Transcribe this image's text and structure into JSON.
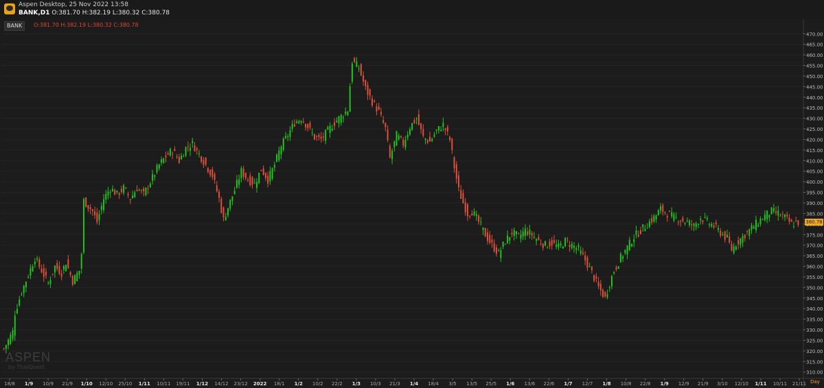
{
  "window": {
    "title": "Aspen Desktop, 25 Nov 2022 13:58",
    "symbol_line": "BANK,D1",
    "ohlc_line": "O:381.70 H:382.19 L:380.32 C:380.78"
  },
  "legend": {
    "symbol": "BANK",
    "ohlc": "O:381.70 H:382.19 L:380.32 C:380.78"
  },
  "watermark": {
    "brand": "ASPEN",
    "sub": "by ThaiQuest"
  },
  "colors": {
    "up": "#22c41c",
    "down": "#e0503a",
    "background": "#1c1c1c",
    "axis": "#3a3a3a",
    "accent": "#f0a81f"
  },
  "chart_data": {
    "type": "candlestick",
    "period_label": "Day",
    "last_price_label": "380.78",
    "ylim": [
      307,
      473
    ],
    "y_ticks": [
      "470.00",
      "465.00",
      "460.00",
      "455.00",
      "450.00",
      "445.00",
      "440.00",
      "435.00",
      "430.00",
      "425.00",
      "420.00",
      "415.00",
      "410.00",
      "405.00",
      "400.00",
      "395.00",
      "390.00",
      "385.00",
      "380.00",
      "375.00",
      "370.00",
      "365.00",
      "360.00",
      "355.00",
      "350.00",
      "345.00",
      "340.00",
      "335.00",
      "330.00",
      "325.00",
      "320.00",
      "315.00",
      "310.00"
    ],
    "x_ticks": [
      "18/8",
      "1/9",
      "10/9",
      "21/9",
      "1/10",
      "12/10",
      "25/10",
      "1/11",
      "10/11",
      "19/11",
      "1/12",
      "14/12",
      "23/12",
      "2022",
      "18/1",
      "1/2",
      "10/2",
      "22/2",
      "1/3",
      "10/3",
      "21/3",
      "1/4",
      "18/4",
      "3/5",
      "13/5",
      "25/5",
      "1/6",
      "13/6",
      "22/6",
      "1/7",
      "12/7",
      "1/8",
      "10/8",
      "22/8",
      "1/9",
      "12/9",
      "21/9",
      "3/10",
      "12/10",
      "1/11",
      "10/11",
      "21/11"
    ],
    "anchors": [
      [
        0,
        321
      ],
      [
        4,
        329
      ],
      [
        5,
        338
      ],
      [
        8,
        348
      ],
      [
        11,
        356
      ],
      [
        14,
        364
      ],
      [
        17,
        358
      ],
      [
        20,
        352
      ],
      [
        23,
        360
      ],
      [
        26,
        357
      ],
      [
        28,
        362
      ],
      [
        31,
        353
      ],
      [
        34,
        358
      ],
      [
        35,
        366
      ],
      [
        36,
        391
      ],
      [
        40,
        386
      ],
      [
        42,
        381
      ],
      [
        45,
        392
      ],
      [
        48,
        397
      ],
      [
        51,
        394
      ],
      [
        54,
        397
      ],
      [
        57,
        392
      ],
      [
        60,
        397
      ],
      [
        63,
        394
      ],
      [
        66,
        400
      ],
      [
        70,
        408
      ],
      [
        73,
        412
      ],
      [
        76,
        415
      ],
      [
        79,
        410
      ],
      [
        82,
        416
      ],
      [
        85,
        418
      ],
      [
        88,
        413
      ],
      [
        91,
        408
      ],
      [
        94,
        403
      ],
      [
        97,
        392
      ],
      [
        99,
        382
      ],
      [
        101,
        388
      ],
      [
        104,
        396
      ],
      [
        107,
        405
      ],
      [
        110,
        401
      ],
      [
        113,
        399
      ],
      [
        116,
        406
      ],
      [
        119,
        401
      ],
      [
        122,
        408
      ],
      [
        125,
        417
      ],
      [
        128,
        422
      ],
      [
        131,
        428
      ],
      [
        134,
        430
      ],
      [
        137,
        426
      ],
      [
        140,
        421
      ],
      [
        143,
        420
      ],
      [
        146,
        424
      ],
      [
        149,
        428
      ],
      [
        152,
        431
      ],
      [
        155,
        434
      ],
      [
        157,
        457
      ],
      [
        160,
        454
      ],
      [
        163,
        444
      ],
      [
        166,
        438
      ],
      [
        169,
        433
      ],
      [
        172,
        425
      ],
      [
        174,
        411
      ],
      [
        177,
        422
      ],
      [
        180,
        418
      ],
      [
        183,
        426
      ],
      [
        186,
        430
      ],
      [
        189,
        421
      ],
      [
        192,
        419
      ],
      [
        195,
        424
      ],
      [
        198,
        427
      ],
      [
        201,
        420
      ],
      [
        203,
        407
      ],
      [
        205,
        396
      ],
      [
        207,
        390
      ],
      [
        209,
        385
      ],
      [
        211,
        386
      ],
      [
        214,
        381
      ],
      [
        217,
        375
      ],
      [
        220,
        370
      ],
      [
        223,
        366
      ],
      [
        226,
        372
      ],
      [
        229,
        376
      ],
      [
        232,
        374
      ],
      [
        235,
        377
      ],
      [
        238,
        375
      ],
      [
        241,
        372
      ],
      [
        244,
        370
      ],
      [
        247,
        371
      ],
      [
        250,
        369
      ],
      [
        253,
        372
      ],
      [
        256,
        370
      ],
      [
        259,
        368
      ],
      [
        262,
        363
      ],
      [
        265,
        357
      ],
      [
        268,
        350
      ],
      [
        271,
        345
      ],
      [
        273,
        352
      ],
      [
        275,
        358
      ],
      [
        278,
        364
      ],
      [
        281,
        369
      ],
      [
        284,
        374
      ],
      [
        287,
        377
      ],
      [
        290,
        380
      ],
      [
        293,
        383
      ],
      [
        296,
        387
      ],
      [
        299,
        385
      ],
      [
        302,
        383
      ],
      [
        305,
        382
      ],
      [
        308,
        381
      ],
      [
        311,
        379
      ],
      [
        314,
        383
      ],
      [
        317,
        381
      ],
      [
        320,
        379
      ],
      [
        323,
        376
      ],
      [
        326,
        373
      ],
      [
        328,
        368
      ],
      [
        331,
        372
      ],
      [
        334,
        375
      ],
      [
        337,
        378
      ],
      [
        340,
        381
      ],
      [
        343,
        384
      ],
      [
        346,
        386
      ],
      [
        349,
        385
      ],
      [
        352,
        383
      ],
      [
        355,
        380
      ],
      [
        358,
        381
      ]
    ]
  }
}
